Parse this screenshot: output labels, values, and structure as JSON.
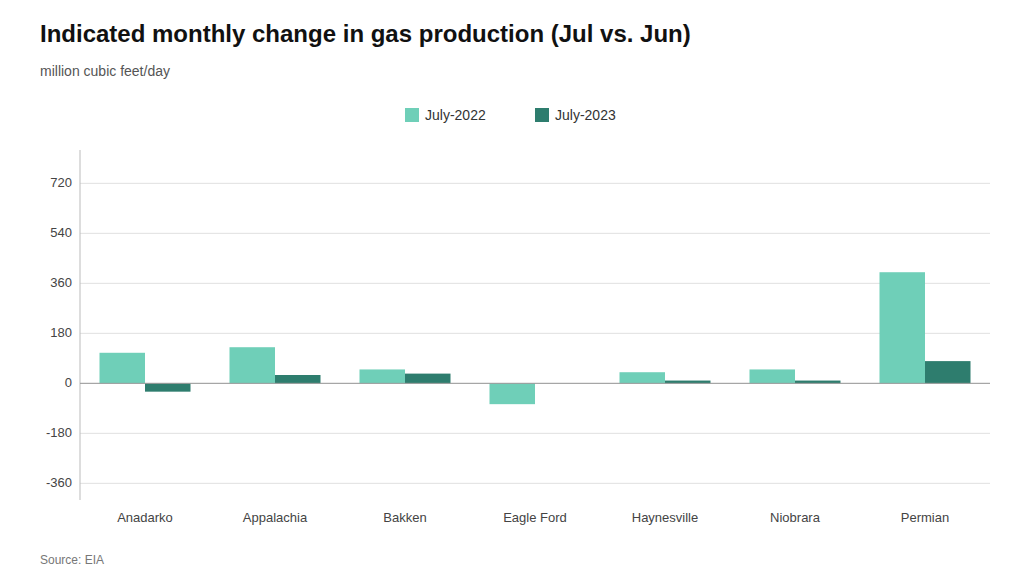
{
  "chart_data": {
    "type": "bar",
    "title": "Indicated monthly change in gas production (Jul vs. Jun)",
    "subtitle": "million cubic feet/day",
    "annotations": [
      "Source: EIA"
    ],
    "categories": [
      "Anadarko",
      "Appalachia",
      "Bakken",
      "Eagle Ford",
      "Haynesville",
      "Niobrara",
      "Permian"
    ],
    "series": [
      {
        "name": "July-2022",
        "color": "#6fcfb8",
        "values": [
          110,
          130,
          50,
          -75,
          40,
          50,
          400
        ]
      },
      {
        "name": "July-2023",
        "color": "#2e7d6e",
        "values": [
          -30,
          30,
          35,
          0,
          10,
          10,
          80
        ]
      }
    ],
    "ylim": [
      -420,
      840
    ],
    "yticks": [
      -360,
      -180,
      0,
      180,
      360,
      540,
      720
    ],
    "grid": true,
    "legend": "top"
  }
}
